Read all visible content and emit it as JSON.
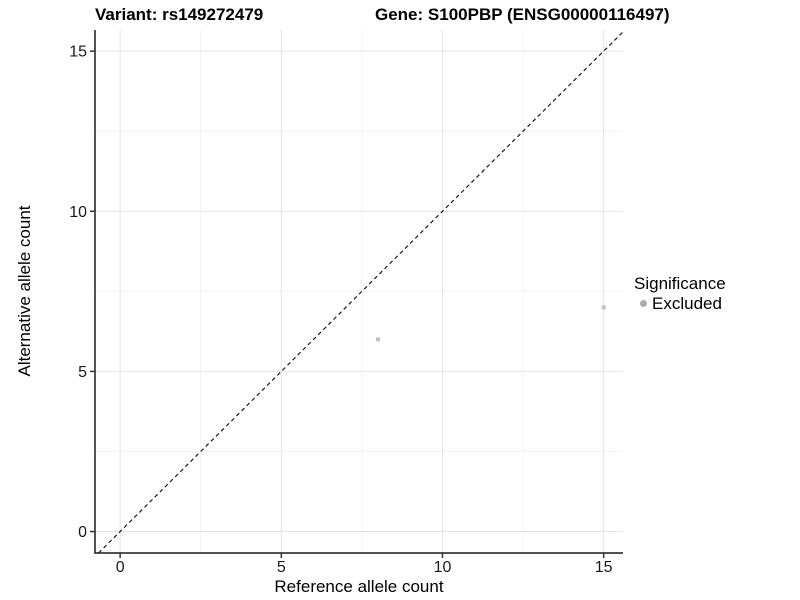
{
  "chart_data": {
    "type": "scatter",
    "title_left": "Variant: rs149272479",
    "title_right": "Gene: S100PBP (ENSG00000116497)",
    "xlabel": "Reference allele count",
    "ylabel": "Alternative allele count",
    "xlim": [
      -0.78,
      15.6
    ],
    "ylim": [
      -0.67,
      15.66
    ],
    "xticks": [
      0,
      5,
      10,
      15
    ],
    "yticks": [
      0,
      5,
      10,
      15
    ],
    "xticks_minor": [
      2.5,
      7.5,
      12.5
    ],
    "yticks_minor": [
      2.5,
      7.5,
      12.5
    ],
    "grid": "major+minor",
    "identity_line": {
      "equation": "y = x",
      "style": "dashed"
    },
    "series": [
      {
        "name": "Excluded",
        "points": [
          [
            8,
            6
          ],
          [
            15,
            7
          ]
        ]
      }
    ],
    "legend": {
      "title": "Significance",
      "position": "right",
      "items": [
        {
          "label": "Excluded",
          "color": "#ababab"
        }
      ]
    },
    "colors": {
      "background": "#ffffff",
      "grid_major": "#e4e4e4",
      "grid_minor": "#f2f2f2",
      "axis_line": "#1a1a1a",
      "tick": "#333333",
      "tick_label": "#1a1a1a",
      "identity_line": "#1a1a1a",
      "point": "#c1c1c1"
    }
  }
}
